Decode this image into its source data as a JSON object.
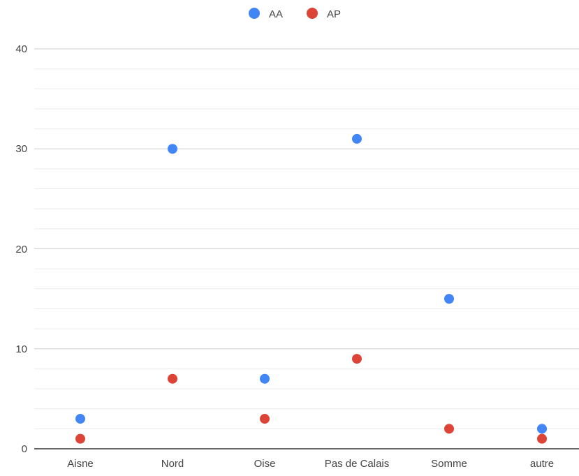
{
  "chart_data": {
    "type": "scatter",
    "categories": [
      "Aisne",
      "Nord",
      "Oise",
      "Pas de Calais",
      "Somme",
      "autre"
    ],
    "series": [
      {
        "name": "AA",
        "color": "#4285f4",
        "values": [
          3,
          30,
          7,
          31,
          15,
          2
        ]
      },
      {
        "name": "AP",
        "color": "#db4437",
        "values": [
          1,
          7,
          3,
          9,
          2,
          1
        ]
      }
    ],
    "yticks": [
      "0",
      "10",
      "20",
      "30",
      "40"
    ],
    "ylim": [
      0,
      40
    ],
    "minor_grid_step": 2,
    "grid": true,
    "legend_position": "top"
  }
}
